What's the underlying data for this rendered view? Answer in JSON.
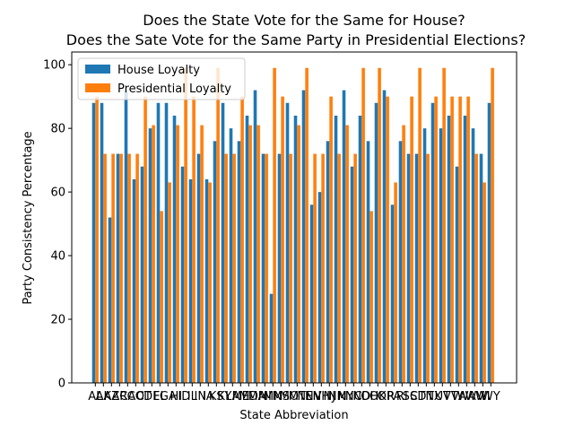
{
  "chart_data": {
    "type": "bar",
    "title_line1": "Does the State Vote for the Same for House?",
    "title_line2": "Does the Sate Vote for the Same Party in Presidential Elections?",
    "xlabel": "State Abbreviation",
    "ylabel": "Party Consistency Percentage",
    "ylim": [
      0,
      104
    ],
    "yticks": [
      0,
      20,
      40,
      60,
      80,
      100
    ],
    "grid": false,
    "legend_position": "top-left",
    "categories": [
      "AL",
      "AK",
      "AZ",
      "AR",
      "CA",
      "CO",
      "CT",
      "DE",
      "FL",
      "GA",
      "HI",
      "ID",
      "IL",
      "IN",
      "IA",
      "KS",
      "KY",
      "LA",
      "ME",
      "MD",
      "MA",
      "MI",
      "MN",
      "MS",
      "MO",
      "MT",
      "NE",
      "NV",
      "NH",
      "NJ",
      "NM",
      "NY",
      "NC",
      "ND",
      "OH",
      "OK",
      "OR",
      "PA",
      "RI",
      "SC",
      "SD",
      "TN",
      "TX",
      "UT",
      "VT",
      "VA",
      "WA",
      "WV",
      "WI",
      "WY"
    ],
    "series": [
      {
        "name": "House Loyalty",
        "color": "#1f77b4",
        "values": [
          88,
          88,
          52,
          72,
          92,
          64,
          68,
          80,
          88,
          88,
          84,
          68,
          64,
          72,
          64,
          76,
          88,
          80,
          76,
          84,
          92,
          72,
          28,
          72,
          88,
          84,
          92,
          56,
          60,
          76,
          84,
          92,
          68,
          84,
          76,
          88,
          92,
          56,
          76,
          72,
          72,
          80,
          88,
          80,
          84,
          68,
          84,
          80,
          72,
          88
        ]
      },
      {
        "name": "Presidential Loyalty",
        "color": "#ff7f0e",
        "values": [
          90,
          72,
          72,
          72,
          72,
          72,
          90,
          81,
          54,
          63,
          81,
          99,
          90,
          81,
          63,
          99,
          72,
          72,
          90,
          81,
          81,
          72,
          99,
          90,
          72,
          81,
          99,
          72,
          72,
          90,
          72,
          81,
          72,
          99,
          54,
          99,
          90,
          63,
          81,
          90,
          99,
          72,
          90,
          99,
          90,
          90,
          90,
          72,
          63,
          99
        ]
      }
    ]
  }
}
